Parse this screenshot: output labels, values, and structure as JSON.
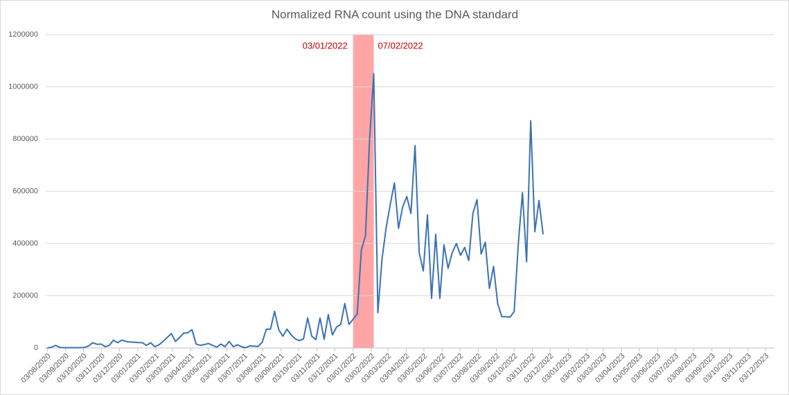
{
  "chart_data": {
    "type": "line",
    "title": "Normalized RNA count using the DNA standard",
    "color": "#3a70b5",
    "x": [
      "03/08/2020",
      "10/08/2020",
      "17/08/2020",
      "24/08/2020",
      "31/08/2020",
      "07/09/2020",
      "14/09/2020",
      "21/09/2020",
      "28/09/2020",
      "05/10/2020",
      "12/10/2020",
      "19/10/2020",
      "26/10/2020",
      "02/11/2020",
      "09/11/2020",
      "16/11/2020",
      "23/11/2020",
      "30/11/2020",
      "07/12/2020",
      "14/12/2020",
      "21/12/2020",
      "28/12/2020",
      "04/01/2021",
      "11/01/2021",
      "18/01/2021",
      "25/01/2021",
      "01/02/2021",
      "08/02/2021",
      "15/02/2021",
      "22/02/2021",
      "01/03/2021",
      "08/03/2021",
      "15/03/2021",
      "22/03/2021",
      "29/03/2021",
      "05/04/2021",
      "12/04/2021",
      "19/04/2021",
      "26/04/2021",
      "03/05/2021",
      "10/05/2021",
      "17/05/2021",
      "24/05/2021",
      "31/05/2021",
      "07/06/2021",
      "14/06/2021",
      "21/06/2021",
      "28/06/2021",
      "05/07/2021",
      "12/07/2021",
      "19/07/2021",
      "26/07/2021",
      "02/08/2021",
      "09/08/2021",
      "16/08/2021",
      "23/08/2021",
      "30/08/2021",
      "06/09/2021",
      "13/09/2021",
      "20/09/2021",
      "27/09/2021",
      "04/10/2021",
      "11/10/2021",
      "18/10/2021",
      "25/10/2021",
      "01/11/2021",
      "08/11/2021",
      "15/11/2021",
      "22/11/2021",
      "29/11/2021",
      "06/12/2021",
      "13/12/2021",
      "20/12/2021",
      "27/12/2021",
      "03/01/2022",
      "10/01/2022",
      "17/01/2022",
      "24/01/2022",
      "31/01/2022",
      "07/02/2022",
      "14/02/2022",
      "21/02/2022",
      "28/02/2022",
      "07/03/2022",
      "14/03/2022",
      "21/03/2022",
      "28/03/2022",
      "04/04/2022",
      "11/04/2022",
      "18/04/2022",
      "25/04/2022",
      "02/05/2022",
      "09/05/2022",
      "16/05/2022",
      "23/05/2022",
      "30/05/2022",
      "06/06/2022",
      "13/06/2022",
      "20/06/2022",
      "27/06/2022",
      "04/07/2022",
      "11/07/2022",
      "18/07/2022",
      "25/07/2022",
      "01/08/2022",
      "08/08/2022",
      "15/08/2022",
      "22/08/2022",
      "29/08/2022",
      "05/09/2022",
      "12/09/2022",
      "19/09/2022",
      "26/09/2022",
      "03/10/2022",
      "10/10/2022",
      "17/10/2022",
      "24/10/2022",
      "31/10/2022",
      "07/11/2022",
      "14/11/2022",
      "21/11/2022"
    ],
    "values": [
      0,
      3000,
      10000,
      2000,
      1000,
      1000,
      1000,
      1000,
      1000,
      2000,
      8000,
      20000,
      14000,
      15000,
      5000,
      10000,
      30000,
      20000,
      30000,
      25000,
      23000,
      22000,
      21000,
      20000,
      10000,
      20000,
      5000,
      12000,
      25000,
      40000,
      55000,
      25000,
      40000,
      57000,
      58000,
      70000,
      15000,
      10000,
      13000,
      17000,
      10000,
      3000,
      15000,
      5000,
      25000,
      5000,
      12000,
      5000,
      1000,
      8000,
      7000,
      6000,
      22000,
      72000,
      72000,
      140000,
      70000,
      45000,
      72000,
      50000,
      35000,
      28000,
      35000,
      115000,
      45000,
      32000,
      115000,
      33000,
      128000,
      50000,
      80000,
      90000,
      170000,
      90000,
      110000,
      130000,
      375000,
      430000,
      800000,
      1050000,
      135000,
      340000,
      460000,
      550000,
      632000,
      458000,
      540000,
      580000,
      515000,
      775000,
      365000,
      295000,
      510000,
      190000,
      435000,
      190000,
      395000,
      305000,
      365000,
      400000,
      355000,
      385000,
      335000,
      515000,
      568000,
      360000,
      405000,
      228000,
      312000,
      170000,
      120000,
      120000,
      118000,
      140000,
      400000,
      595000,
      330000,
      870000,
      445000,
      565000,
      435000
    ],
    "xlim": [
      "30/07/2020",
      "18/12/2023"
    ],
    "xticks": [
      "03/08/2020",
      "03/09/2020",
      "03/10/2020",
      "03/11/2020",
      "03/12/2020",
      "03/01/2021",
      "03/02/2021",
      "03/03/2021",
      "03/04/2021",
      "03/05/2021",
      "03/06/2021",
      "03/07/2021",
      "03/08/2021",
      "03/09/2021",
      "03/10/2021",
      "03/11/2021",
      "03/12/2021",
      "03/01/2022",
      "03/02/2022",
      "03/03/2022",
      "03/04/2022",
      "03/05/2022",
      "03/06/2022",
      "03/07/2022",
      "03/08/2022",
      "03/09/2022",
      "03/10/2022",
      "03/11/2022",
      "03/12/2022",
      "03/01/2023",
      "03/02/2023",
      "03/03/2023",
      "03/04/2023",
      "03/05/2023",
      "03/06/2023",
      "03/07/2023",
      "03/08/2023",
      "03/09/2023",
      "03/10/2023",
      "03/11/2023",
      "03/12/2023"
    ],
    "ylim": [
      0,
      1200000
    ],
    "yticks": [
      0,
      200000,
      400000,
      600000,
      800000,
      1000000,
      1200000
    ],
    "grid": true,
    "highlight": {
      "start": "03/01/2022",
      "end": "07/02/2022",
      "color": "#ffa5a5"
    }
  }
}
